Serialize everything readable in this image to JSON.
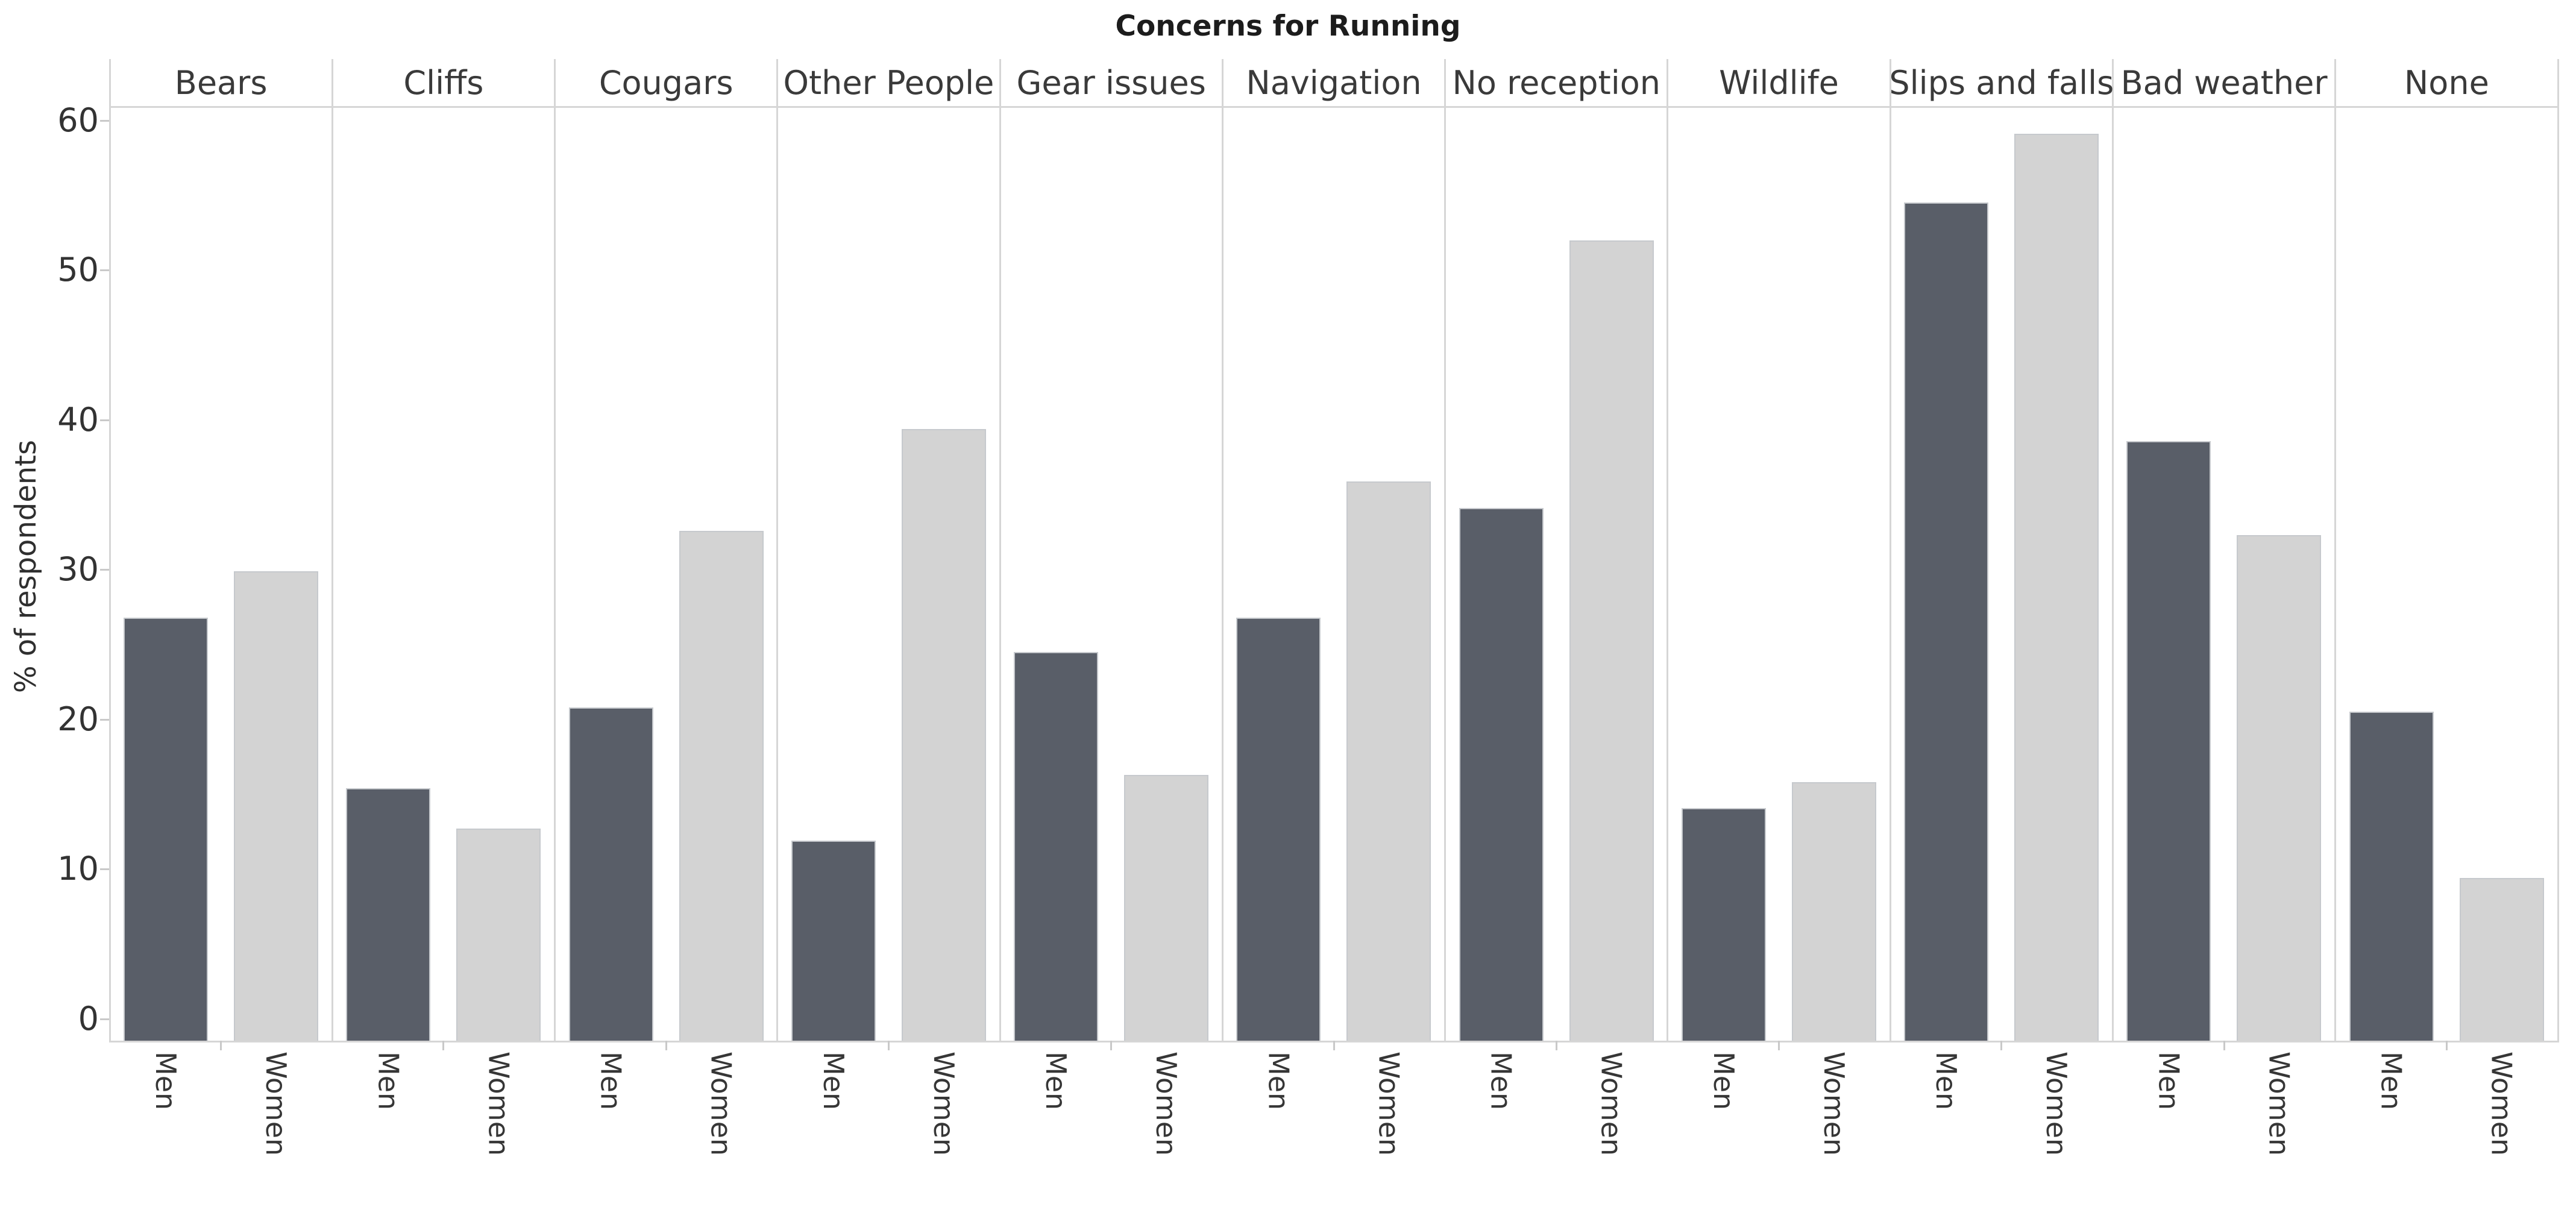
{
  "title": "Concerns for Running",
  "y_axis_label": "% of respondents",
  "chart_data": {
    "type": "bar",
    "title": "Concerns for Running",
    "xlabel": "",
    "ylabel": "% of respondents",
    "categories": [
      "Bears",
      "Cliffs",
      "Cougars",
      "Other People",
      "Gear issues",
      "Navigation",
      "No reception",
      "Wildlife",
      "Slips and falls",
      "Bad weather",
      "None"
    ],
    "series": [
      {
        "name": "Men",
        "values": [
          26.8,
          15.4,
          20.8,
          11.9,
          24.5,
          26.8,
          34.1,
          14.1,
          54.5,
          38.6,
          20.5
        ]
      },
      {
        "name": "Women",
        "values": [
          29.9,
          12.7,
          32.6,
          39.4,
          16.3,
          35.9,
          52.0,
          15.8,
          59.1,
          32.3,
          9.4
        ]
      }
    ],
    "yticks": [
      0,
      10,
      20,
      30,
      40,
      50,
      60
    ],
    "ylim": [
      0,
      60
    ],
    "grid": "off",
    "legend_position": "none",
    "facet_layout": "one panel per category, category name as panel header; Men/Women labels rotated vertically under each bar"
  },
  "colors": {
    "men_bar": "#595e68",
    "women_bar": "#d3d3d3",
    "bar_edge": "#c6c9cd",
    "panel_line": "#d6d6d6",
    "tick_mark": "#c9c9c9",
    "text": "#363636",
    "title_text": "#1c1c1c",
    "background": "#ffffff"
  }
}
